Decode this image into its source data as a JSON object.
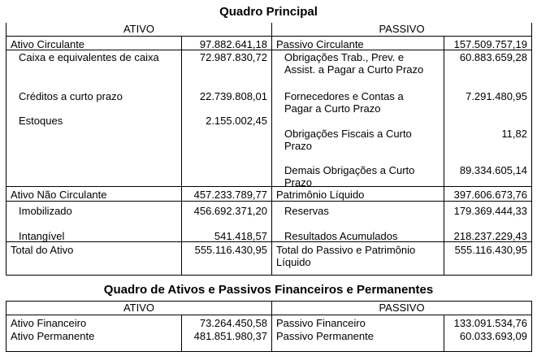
{
  "colors": {
    "background": "#ffffff",
    "text": "#000000",
    "border": "#000000"
  },
  "quadro_principal": {
    "title": "Quadro Principal",
    "col_headers": {
      "ativo": "ATIVO",
      "passivo": "PASSIVO"
    },
    "ativo": {
      "circulante": {
        "label": "Ativo Circulante",
        "value": "97.882.641,18"
      },
      "circulante_items": [
        {
          "label": "Caixa e equivalentes de caixa",
          "value": "72.987.830,72"
        },
        {
          "label": "Créditos a curto prazo",
          "value": "22.739.808,01"
        },
        {
          "label": "Estoques",
          "value": "2.155.002,45"
        }
      ],
      "nao_circulante": {
        "label": "Ativo Não Circulante",
        "value": "457.233.789,77"
      },
      "nao_circulante_items": [
        {
          "label": "Imobilizado",
          "value": "456.692.371,20"
        },
        {
          "label": "Intangível",
          "value": "541.418,57"
        }
      ],
      "total": {
        "label": "Total do Ativo",
        "value": "555.116.430,95"
      }
    },
    "passivo": {
      "circulante": {
        "label": "Passivo Circulante",
        "value": "157.509.757,19"
      },
      "circulante_items": [
        {
          "label": "Obrigações Trab., Prev. e\nAssist. a Pagar a Curto Prazo",
          "value": "60.883.659,28"
        },
        {
          "label": "Fornecedores e Contas a\nPagar a Curto Prazo",
          "value": "7.291.480,95"
        },
        {
          "label": "Obrigações Fiscais a Curto\nPrazo",
          "value": "11,82"
        },
        {
          "label": "Demais Obrigações a Curto\nPrazo",
          "value": "89.334.605,14"
        }
      ],
      "patrimonio_liquido": {
        "label": "Patrimônio Líquido",
        "value": "397.606.673,76"
      },
      "patrimonio_liquido_items": [
        {
          "label": "Reservas",
          "value": "179.369.444,33"
        },
        {
          "label": "Resultados Acumulados",
          "value": "218.237.229,43"
        }
      ],
      "total": {
        "label": "Total do Passivo e Patrimônio\nLíquido",
        "value": "555.116.430,95"
      }
    }
  },
  "quadro_financeiro": {
    "title": "Quadro de Ativos e Passivos Financeiros e Permanentes",
    "col_headers": {
      "ativo": "ATIVO",
      "passivo": "PASSIVO"
    },
    "rows": [
      {
        "ativo_label": "Ativo Financeiro",
        "ativo_value": "73.264.450,58",
        "passivo_label": "Passivo Financeiro",
        "passivo_value": "133.091.534,76"
      },
      {
        "ativo_label": "Ativo Permanente",
        "ativo_value": "481.851.980,37",
        "passivo_label": "Passivo Permanente",
        "passivo_value": "60.033.693,09"
      }
    ]
  }
}
